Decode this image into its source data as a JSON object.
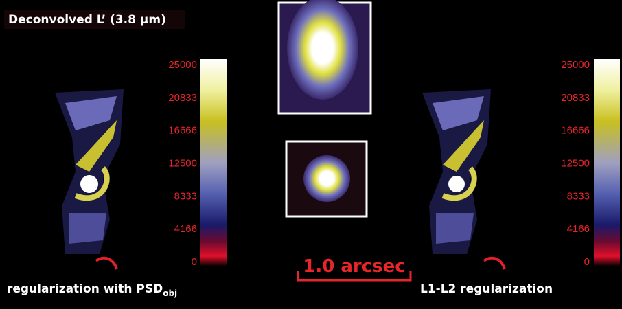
{
  "title": "Deconvolved L’ (3.8 µm)",
  "left_panel": {
    "label": "regularization with PSD",
    "subscript": "obj",
    "colorbar_ticks": [
      25000,
      20833,
      16666,
      12500,
      8333,
      4166,
      0
    ]
  },
  "right_panel": {
    "label": "L1-L2 regularization",
    "colorbar_ticks": [
      25000,
      20833,
      16666,
      12500,
      8333,
      4166,
      0
    ]
  },
  "scale_bar": "1.0 arcsec"
}
